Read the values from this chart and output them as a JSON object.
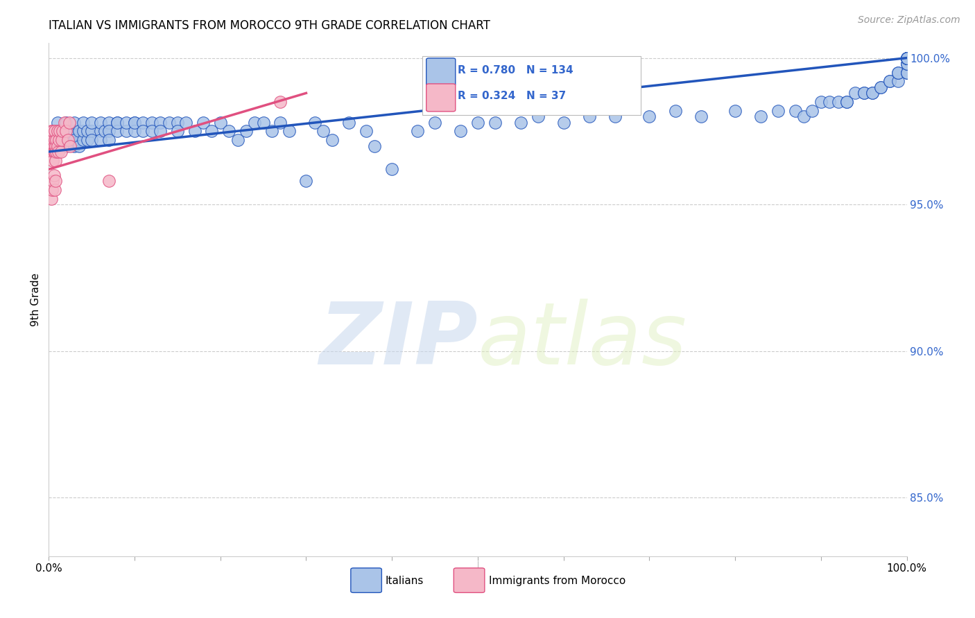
{
  "title": "ITALIAN VS IMMIGRANTS FROM MOROCCO 9TH GRADE CORRELATION CHART",
  "source": "Source: ZipAtlas.com",
  "ylabel": "9th Grade",
  "right_yticks": [
    100.0,
    95.0,
    90.0,
    85.0
  ],
  "legend_blue_r": "0.780",
  "legend_blue_n": "134",
  "legend_pink_r": "0.324",
  "legend_pink_n": "37",
  "legend_label_blue": "Italians",
  "legend_label_pink": "Immigrants from Morocco",
  "watermark_zip": "ZIP",
  "watermark_atlas": "atlas",
  "blue_color": "#aac4e8",
  "blue_line_color": "#2255bb",
  "pink_color": "#f5b8c8",
  "pink_line_color": "#e05080",
  "background_color": "#ffffff",
  "blue_scatter_x": [
    0.01,
    0.01,
    0.01,
    0.015,
    0.02,
    0.02,
    0.02,
    0.025,
    0.025,
    0.03,
    0.03,
    0.03,
    0.03,
    0.035,
    0.035,
    0.04,
    0.04,
    0.04,
    0.045,
    0.045,
    0.05,
    0.05,
    0.05,
    0.06,
    0.06,
    0.06,
    0.065,
    0.07,
    0.07,
    0.07,
    0.08,
    0.08,
    0.08,
    0.09,
    0.09,
    0.1,
    0.1,
    0.1,
    0.11,
    0.11,
    0.12,
    0.12,
    0.13,
    0.13,
    0.14,
    0.15,
    0.15,
    0.16,
    0.17,
    0.18,
    0.19,
    0.2,
    0.21,
    0.22,
    0.23,
    0.24,
    0.25,
    0.26,
    0.27,
    0.28,
    0.3,
    0.31,
    0.32,
    0.33,
    0.35,
    0.37,
    0.38,
    0.4,
    0.43,
    0.45,
    0.48,
    0.5,
    0.52,
    0.55,
    0.57,
    0.6,
    0.63,
    0.66,
    0.7,
    0.73,
    0.76,
    0.8,
    0.83,
    0.85,
    0.87,
    0.88,
    0.89,
    0.9,
    0.91,
    0.92,
    0.93,
    0.93,
    0.94,
    0.95,
    0.95,
    0.96,
    0.96,
    0.97,
    0.97,
    0.98,
    0.98,
    0.99,
    0.99,
    0.99,
    1.0,
    1.0,
    1.0,
    1.0,
    1.0,
    1.0,
    1.0,
    1.0,
    1.0,
    1.0,
    1.0,
    1.0,
    1.0,
    1.0,
    1.0,
    1.0,
    1.0,
    1.0,
    1.0,
    1.0,
    1.0,
    1.0,
    1.0,
    1.0,
    1.0,
    1.0,
    1.0,
    1.0,
    1.0,
    1.0
  ],
  "blue_scatter_y": [
    97.5,
    97.0,
    97.8,
    97.2,
    97.5,
    97.0,
    97.8,
    97.2,
    97.5,
    97.0,
    97.5,
    97.2,
    97.8,
    97.0,
    97.5,
    97.2,
    97.5,
    97.8,
    97.2,
    97.5,
    97.5,
    97.2,
    97.8,
    97.5,
    97.8,
    97.2,
    97.5,
    97.8,
    97.5,
    97.2,
    97.8,
    97.5,
    97.8,
    97.5,
    97.8,
    97.8,
    97.5,
    97.8,
    97.8,
    97.5,
    97.8,
    97.5,
    97.8,
    97.5,
    97.8,
    97.8,
    97.5,
    97.8,
    97.5,
    97.8,
    97.5,
    97.8,
    97.5,
    97.2,
    97.5,
    97.8,
    97.8,
    97.5,
    97.8,
    97.5,
    95.8,
    97.8,
    97.5,
    97.2,
    97.8,
    97.5,
    97.0,
    96.2,
    97.5,
    97.8,
    97.5,
    97.8,
    97.8,
    97.8,
    98.0,
    97.8,
    98.0,
    98.0,
    98.0,
    98.2,
    98.0,
    98.2,
    98.0,
    98.2,
    98.2,
    98.0,
    98.2,
    98.5,
    98.5,
    98.5,
    98.5,
    98.5,
    98.8,
    98.8,
    98.8,
    98.8,
    98.8,
    99.0,
    99.0,
    99.2,
    99.2,
    99.2,
    99.5,
    99.5,
    99.5,
    99.5,
    99.5,
    99.8,
    99.8,
    99.8,
    100.0,
    100.0,
    100.0,
    100.0,
    100.0,
    100.0,
    100.0,
    100.0,
    100.0,
    100.0,
    100.0,
    100.0,
    100.0,
    100.0,
    100.0,
    100.0,
    100.0,
    100.0,
    100.0,
    100.0,
    100.0,
    100.0,
    100.0,
    100.0
  ],
  "pink_scatter_x": [
    0.003,
    0.003,
    0.004,
    0.004,
    0.005,
    0.005,
    0.005,
    0.006,
    0.006,
    0.007,
    0.007,
    0.007,
    0.008,
    0.008,
    0.009,
    0.009,
    0.01,
    0.01,
    0.011,
    0.012,
    0.013,
    0.014,
    0.015,
    0.016,
    0.018,
    0.02,
    0.022,
    0.024,
    0.003,
    0.004,
    0.005,
    0.006,
    0.007,
    0.008,
    0.025,
    0.07,
    0.27
  ],
  "pink_scatter_y": [
    97.2,
    97.5,
    96.8,
    97.0,
    97.2,
    96.5,
    97.5,
    97.0,
    96.8,
    97.2,
    96.8,
    97.5,
    97.0,
    96.5,
    97.2,
    96.8,
    97.0,
    97.5,
    96.8,
    97.2,
    97.5,
    96.8,
    97.2,
    97.5,
    97.8,
    97.5,
    97.2,
    97.8,
    95.2,
    95.5,
    95.8,
    96.0,
    95.5,
    95.8,
    97.0,
    95.8,
    98.5
  ],
  "blue_trendline_x": [
    0.0,
    1.0
  ],
  "blue_trendline_y": [
    96.8,
    100.0
  ],
  "pink_trendline_x": [
    0.0,
    0.3
  ],
  "pink_trendline_y": [
    96.2,
    98.8
  ],
  "ymin": 83.0,
  "ymax": 100.5,
  "xmin": 0.0,
  "xmax": 1.0
}
